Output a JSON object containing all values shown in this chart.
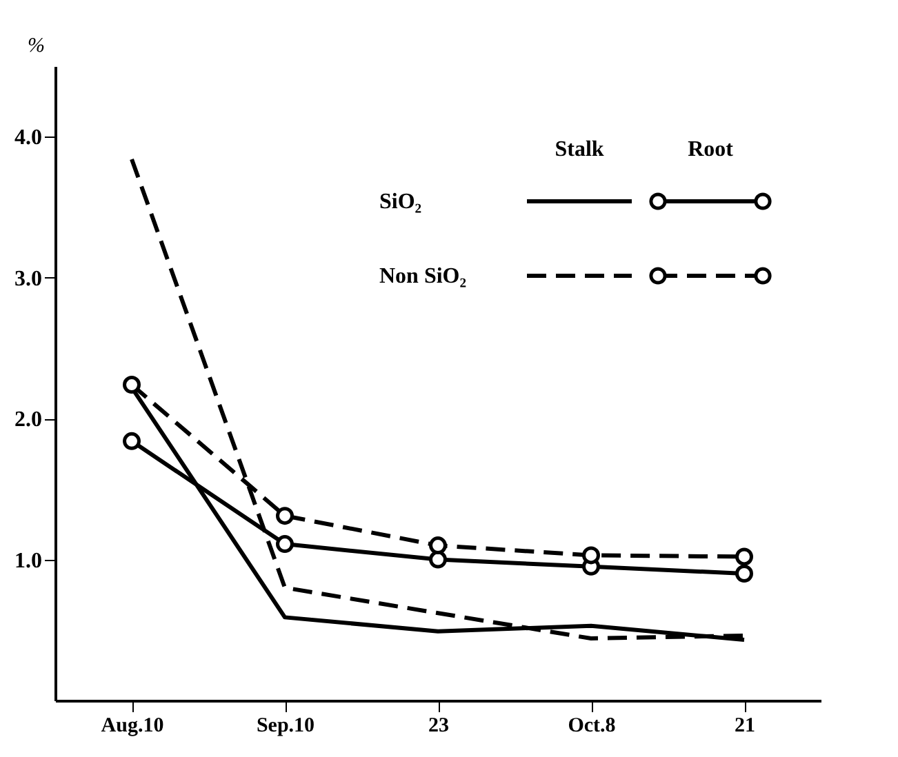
{
  "chart_data": {
    "type": "line",
    "ylabel": "%",
    "categories": [
      "Aug.10",
      "Sep.10",
      "23",
      "Oct.8",
      "21"
    ],
    "series": [
      {
        "color": "#000000",
        "line_style": "solid",
        "marker": "none",
        "values": [
          2.22,
          0.59,
          0.49,
          0.53,
          0.43
        ]
      },
      {
        "color": "#000000",
        "line_style": "solid",
        "marker": "circle",
        "values": [
          1.84,
          1.11,
          1.0,
          0.95,
          0.9
        ]
      },
      {
        "color": "#000000",
        "line_style": "dashed",
        "marker": "none",
        "values": [
          3.84,
          0.8,
          0.62,
          0.44,
          0.46
        ]
      },
      {
        "color": "#000000",
        "line_style": "dashed",
        "marker": "circle",
        "values": [
          2.24,
          1.31,
          1.1,
          1.03,
          1.02
        ]
      }
    ],
    "ylim": [
      0,
      4.5
    ],
    "yticks": [
      {
        "value": 1,
        "label": "1.0"
      },
      {
        "value": 2,
        "label": "2.0"
      },
      {
        "value": 3,
        "label": "3.0"
      },
      {
        "value": 4,
        "label": "4.0"
      }
    ],
    "annotations": [
      "Stalk",
      "Root",
      "SiO₂",
      "Non SiO₂"
    ],
    "grid": false
  }
}
